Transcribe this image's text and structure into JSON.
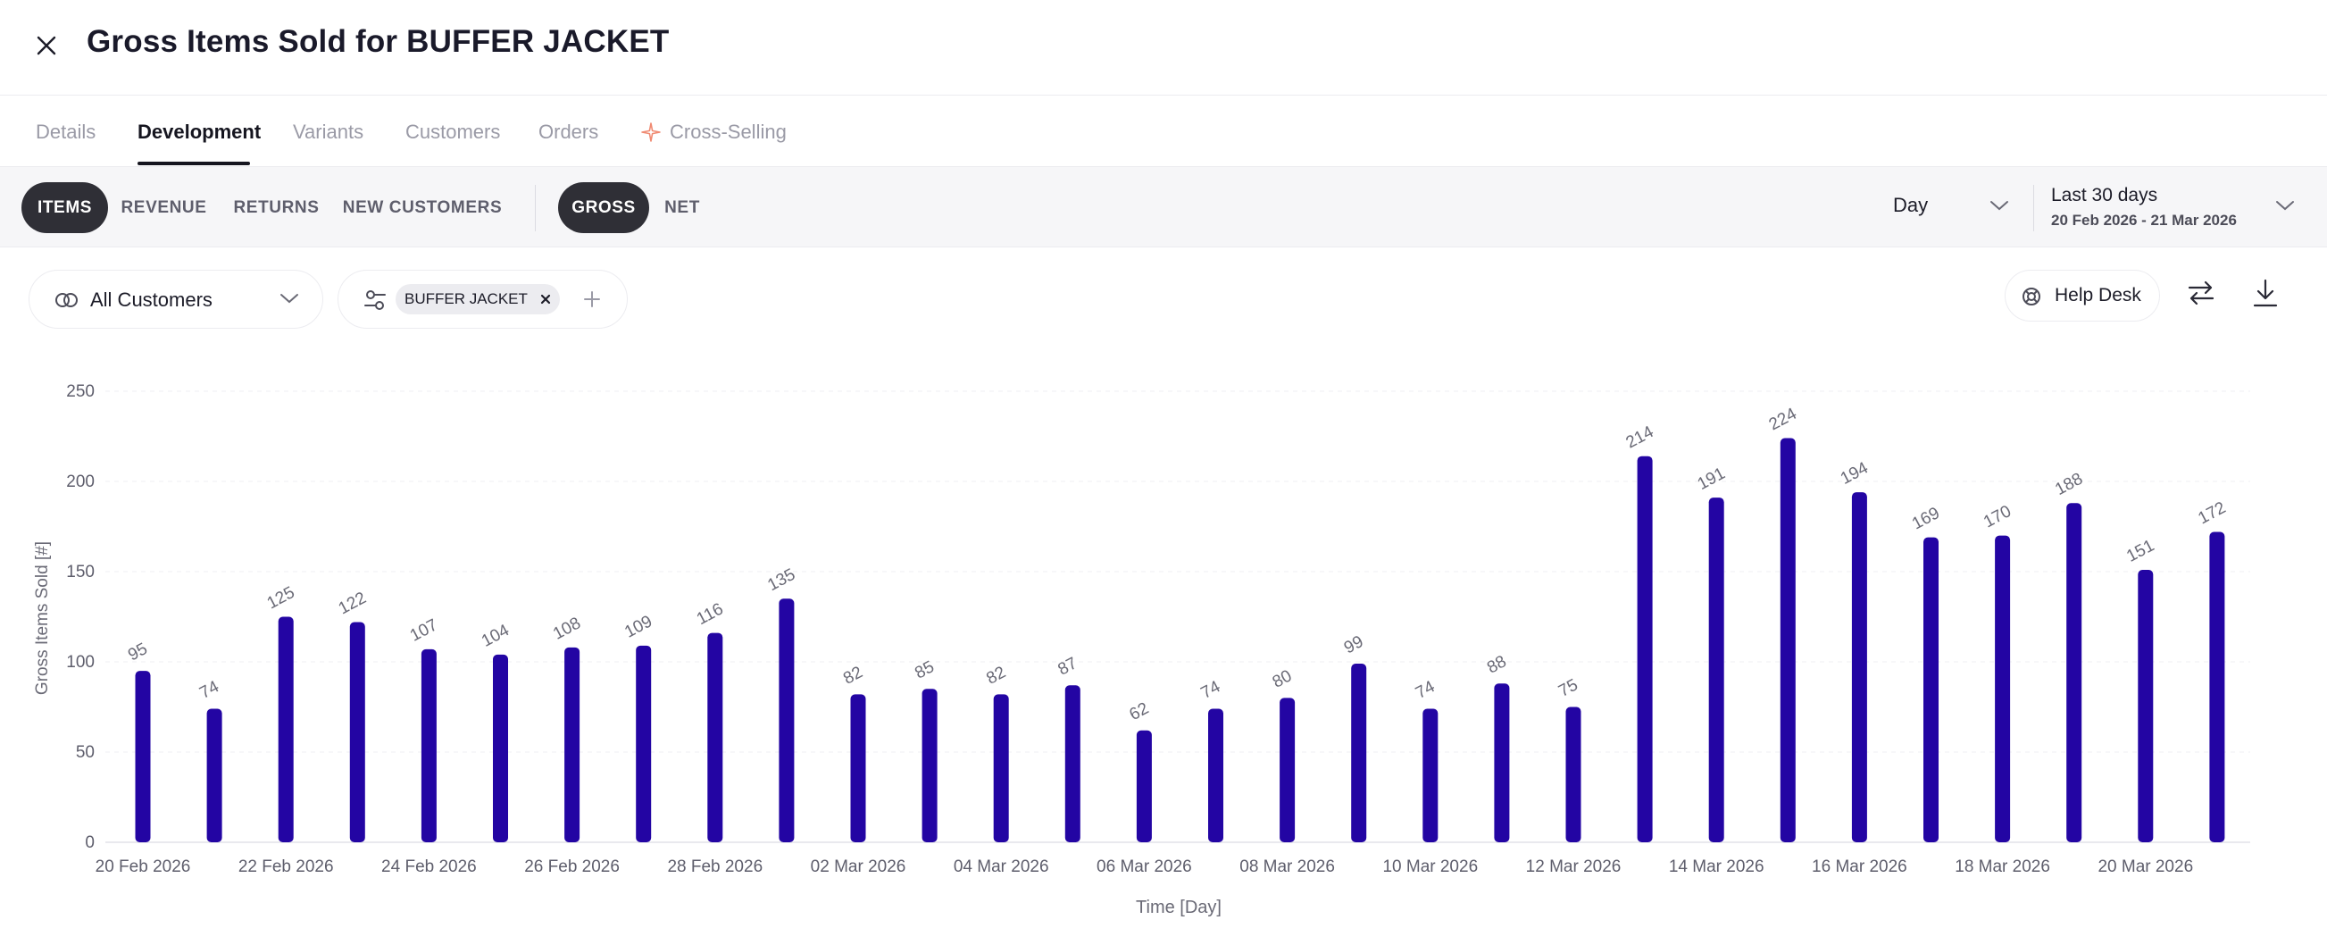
{
  "header": {
    "title": "Gross Items Sold for BUFFER JACKET"
  },
  "tabs": [
    {
      "label": "Details"
    },
    {
      "label": "Development"
    },
    {
      "label": "Variants"
    },
    {
      "label": "Customers"
    },
    {
      "label": "Orders"
    },
    {
      "label": "Cross-Selling"
    }
  ],
  "toolbar": {
    "metrics": [
      "ITEMS",
      "REVENUE",
      "RETURNS",
      "NEW CUSTOMERS"
    ],
    "modes": [
      "GROSS",
      "NET"
    ],
    "granularity": "Day",
    "range_title": "Last 30 days",
    "range_dates": "20 Feb 2026 - 21 Mar 2026"
  },
  "filters": {
    "customers": "All Customers",
    "product_chip": "BUFFER JACKET"
  },
  "actions": {
    "help_desk": "Help Desk"
  },
  "colors": {
    "bar": "#2305a3",
    "accent_star": "#f08a72",
    "active_pill": "#2f2f36"
  },
  "chart_data": {
    "type": "bar",
    "title": "Gross Items Sold for BUFFER JACKET",
    "xlabel": "Time [Day]",
    "ylabel": "Gross Items Sold [#]",
    "ylim": [
      0,
      250
    ],
    "yticks": [
      0,
      50,
      100,
      150,
      200,
      250
    ],
    "grid": true,
    "legend": "none",
    "categories": [
      "20 Feb 2026",
      "21 Feb 2026",
      "22 Feb 2026",
      "23 Feb 2026",
      "24 Feb 2026",
      "25 Feb 2026",
      "26 Feb 2026",
      "27 Feb 2026",
      "28 Feb 2026",
      "01 Mar 2026",
      "02 Mar 2026",
      "03 Mar 2026",
      "04 Mar 2026",
      "05 Mar 2026",
      "06 Mar 2026",
      "07 Mar 2026",
      "08 Mar 2026",
      "09 Mar 2026",
      "10 Mar 2026",
      "11 Mar 2026",
      "12 Mar 2026",
      "13 Mar 2026",
      "14 Mar 2026",
      "15 Mar 2026",
      "16 Mar 2026",
      "17 Mar 2026",
      "18 Mar 2026",
      "19 Mar 2026",
      "20 Mar 2026",
      "21 Mar 2026"
    ],
    "xtick_labels": [
      "20 Feb 2026",
      "22 Feb 2026",
      "24 Feb 2026",
      "26 Feb 2026",
      "28 Feb 2026",
      "02 Mar 2026",
      "04 Mar 2026",
      "06 Mar 2026",
      "08 Mar 2026",
      "10 Mar 2026",
      "12 Mar 2026",
      "14 Mar 2026",
      "16 Mar 2026",
      "18 Mar 2026",
      "20 Mar 2026"
    ],
    "values": [
      95,
      74,
      125,
      122,
      107,
      104,
      108,
      109,
      116,
      135,
      82,
      85,
      82,
      87,
      62,
      74,
      80,
      99,
      74,
      88,
      75,
      214,
      191,
      224,
      194,
      169,
      170,
      188,
      151,
      172
    ]
  }
}
